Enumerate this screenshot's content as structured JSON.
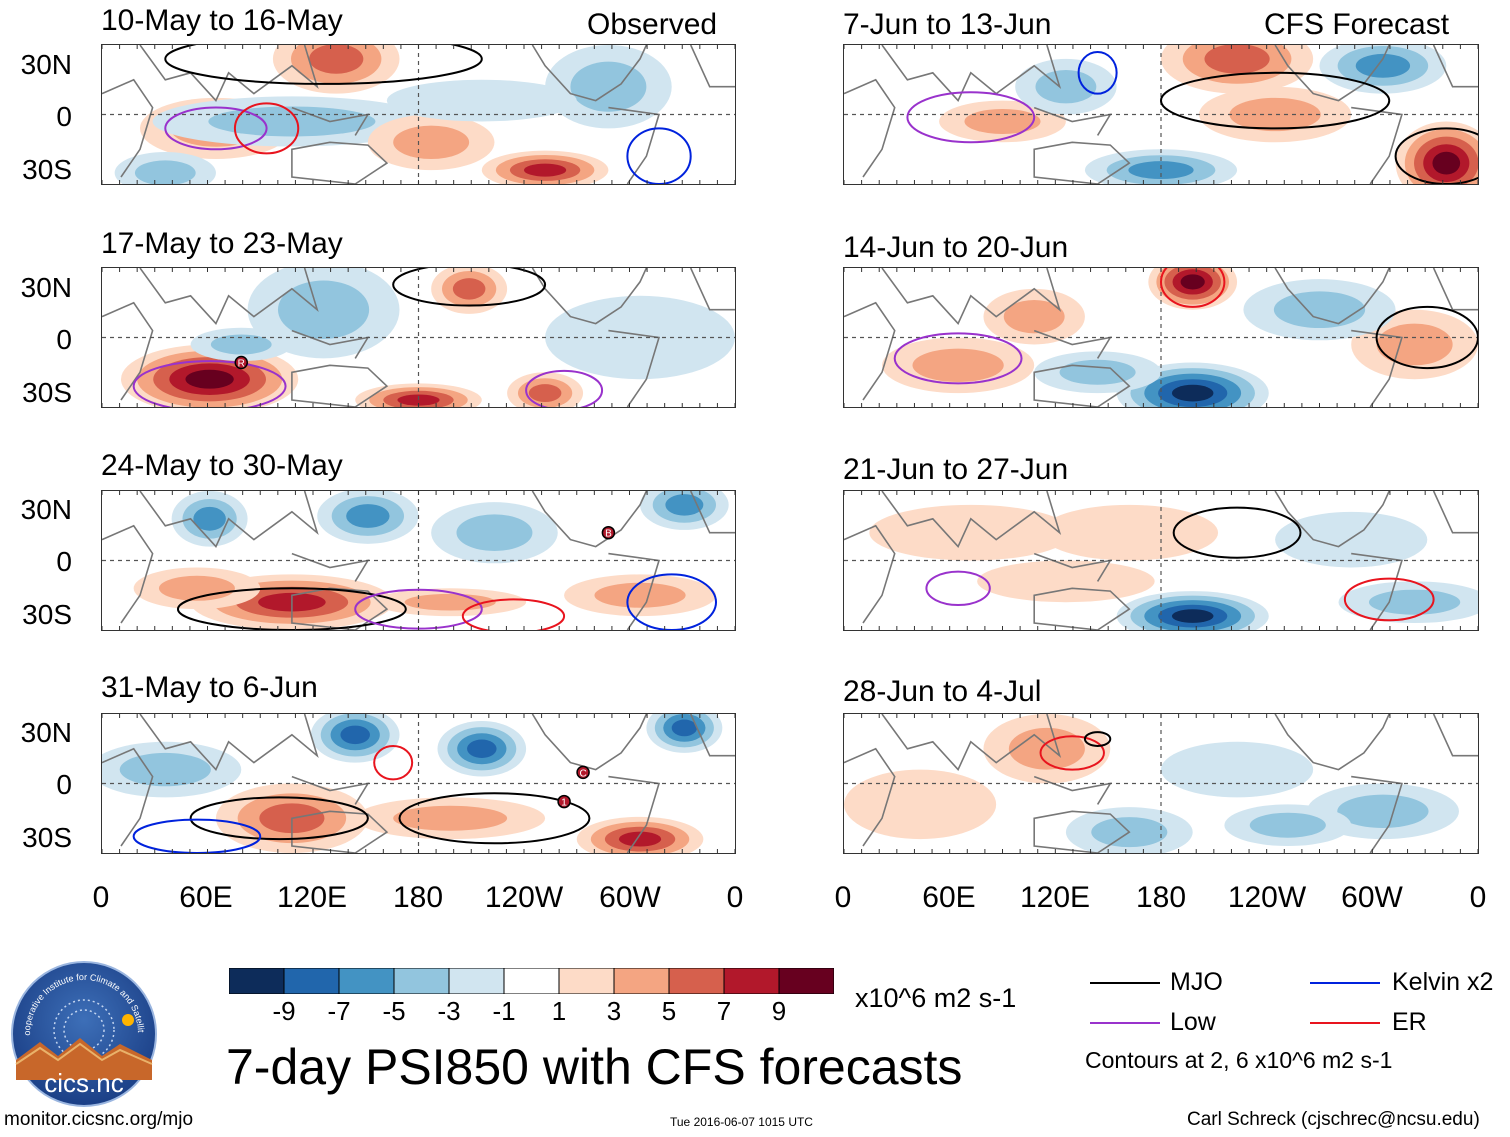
{
  "left_label": "Observed",
  "right_label": "CFS Forecast",
  "observed_panels": [
    {
      "title": "10-May to 16-May"
    },
    {
      "title": "17-May to 23-May"
    },
    {
      "title": "24-May to 30-May"
    },
    {
      "title": "31-May to 6-Jun"
    }
  ],
  "forecast_panels": [
    {
      "title": "7-Jun to 13-Jun"
    },
    {
      "title": "14-Jun to 20-Jun"
    },
    {
      "title": "21-Jun to 27-Jun"
    },
    {
      "title": "28-Jun to 4-Jul"
    }
  ],
  "lat_labels": [
    "30N",
    "0",
    "30S"
  ],
  "lon_labels": [
    "0",
    "60E",
    "120E",
    "180",
    "120W",
    "60W",
    "0"
  ],
  "colorbar": {
    "colors": [
      "#0d2c5a",
      "#2166ac",
      "#4393c3",
      "#92c5de",
      "#d1e5f0",
      "#ffffff",
      "#fddbc7",
      "#f4a582",
      "#d6604d",
      "#b2182b",
      "#67001f"
    ],
    "ticks": [
      "-9",
      "-7",
      "-5",
      "-3",
      "-1",
      "1",
      "3",
      "5",
      "7",
      "9"
    ],
    "units": "x10^6 m2 s-1"
  },
  "legend": {
    "items": [
      {
        "label": "MJO",
        "color": "#000000"
      },
      {
        "label": "Kelvin x2",
        "color": "#0022dd"
      },
      {
        "label": "Low",
        "color": "#9932cc"
      },
      {
        "label": "ER",
        "color": "#e8141e"
      }
    ],
    "note": "Contours at 2, 6 x10^6 m2 s-1"
  },
  "main_title": "7-day PSI850 with CFS forecasts",
  "logo": {
    "text": "cics.nc",
    "arc_text": "Cooperative Institute for Climate and Satellites"
  },
  "footer": {
    "url": "monitor.cicsnc.org/mjo",
    "timestamp": "Tue 2016-06-07 1015 UTC",
    "credit": "Carl Schreck (cjschrec@ncsu.edu)"
  },
  "map_markers": {
    "panel_2": [
      "R"
    ],
    "panel_3": [
      "B"
    ],
    "panel_4": [
      "1",
      "C"
    ]
  }
}
